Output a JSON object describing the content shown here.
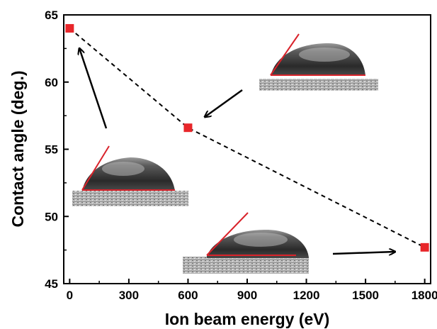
{
  "chart_data": {
    "type": "scatter",
    "xlabel": "Ion beam energy (eV)",
    "ylabel": "Contact angle (deg.)",
    "xlim": [
      -30,
      1830
    ],
    "ylim": [
      45,
      65
    ],
    "xticks": [
      0,
      300,
      600,
      900,
      1200,
      1500,
      1800
    ],
    "yticks": [
      45,
      50,
      55,
      60,
      65
    ],
    "x": [
      0,
      600,
      1800
    ],
    "y": [
      64.0,
      56.6,
      47.7
    ],
    "marker": "square",
    "line_style": "dashed",
    "colors": {
      "marker": "#e8262a",
      "line": "#000000",
      "tangent": "#d9232b"
    },
    "insets": [
      {
        "name": "droplet-0eV",
        "points_to_x": 0,
        "points_to_y": 64.0
      },
      {
        "name": "droplet-600eV",
        "points_to_x": 600,
        "points_to_y": 56.6
      },
      {
        "name": "droplet-1800eV",
        "points_to_x": 1800,
        "points_to_y": 47.7
      }
    ]
  }
}
